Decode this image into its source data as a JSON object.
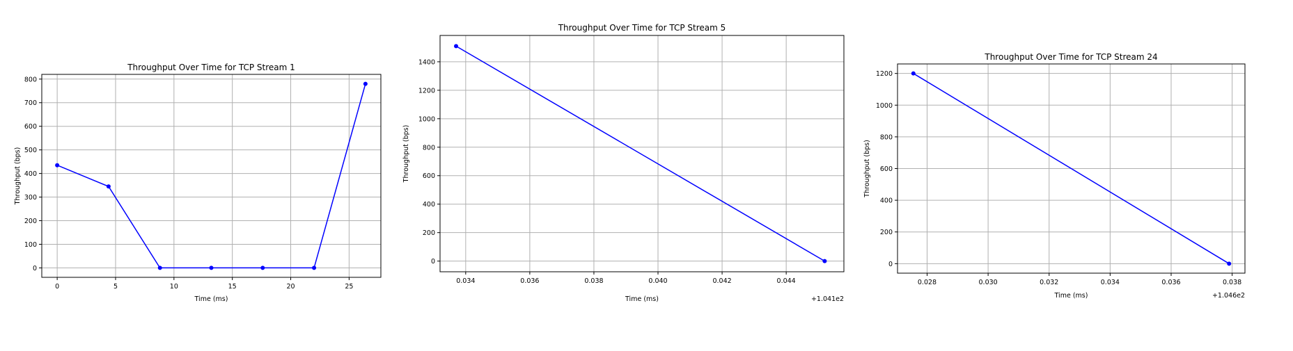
{
  "chart_data": [
    {
      "type": "line",
      "title": "Throughput Over Time for TCP Stream 1",
      "xlabel": "Time (ms)",
      "ylabel": "Throughput (bps)",
      "x_offset_label": "",
      "x": [
        0,
        4.4,
        8.8,
        13.2,
        17.6,
        22.0,
        26.4
      ],
      "y": [
        435,
        345,
        0,
        0,
        0,
        0,
        780
      ],
      "xlim": [
        -1.32,
        27.72
      ],
      "ylim": [
        -40,
        820
      ],
      "xticks": [
        0,
        5,
        10,
        15,
        20,
        25
      ],
      "xtick_labels": [
        "0",
        "5",
        "10",
        "15",
        "20",
        "25"
      ],
      "yticks": [
        0,
        100,
        200,
        300,
        400,
        500,
        600,
        700,
        800
      ],
      "ytick_labels": [
        "0",
        "100",
        "200",
        "300",
        "400",
        "500",
        "600",
        "700",
        "800"
      ],
      "grid": true,
      "color": "#0000ff",
      "marker": "circle"
    },
    {
      "type": "line",
      "title": "Throughput Over Time for TCP Stream 5",
      "xlabel": "Time (ms)",
      "ylabel": "Throughput (bps)",
      "x_offset_label": "+1.041e2",
      "x": [
        0.0337,
        0.0452
      ],
      "y": [
        1510,
        0
      ],
      "xlim": [
        0.0332,
        0.0458
      ],
      "ylim": [
        -75,
        1585
      ],
      "xticks": [
        0.034,
        0.036,
        0.038,
        0.04,
        0.042,
        0.044
      ],
      "xtick_labels": [
        "0.034",
        "0.036",
        "0.038",
        "0.040",
        "0.042",
        "0.044"
      ],
      "yticks": [
        0,
        200,
        400,
        600,
        800,
        1000,
        1200,
        1400
      ],
      "ytick_labels": [
        "0",
        "200",
        "400",
        "600",
        "800",
        "1000",
        "1200",
        "1400"
      ],
      "grid": true,
      "color": "#0000ff",
      "marker": "circle"
    },
    {
      "type": "line",
      "title": "Throughput Over Time for TCP Stream 24",
      "xlabel": "Time (ms)",
      "ylabel": "Throughput (bps)",
      "x_offset_label": "+1.046e2",
      "x": [
        0.02755,
        0.0379
      ],
      "y": [
        1200,
        0
      ],
      "xlim": [
        0.02703,
        0.03842
      ],
      "ylim": [
        -60,
        1260
      ],
      "xticks": [
        0.028,
        0.03,
        0.032,
        0.034,
        0.036,
        0.038
      ],
      "xtick_labels": [
        "0.028",
        "0.030",
        "0.032",
        "0.034",
        "0.036",
        "0.038"
      ],
      "yticks": [
        0,
        200,
        400,
        600,
        800,
        1000,
        1200
      ],
      "ytick_labels": [
        "0",
        "200",
        "400",
        "600",
        "800",
        "1000",
        "1200"
      ],
      "grid": true,
      "color": "#0000ff",
      "marker": "circle"
    }
  ]
}
